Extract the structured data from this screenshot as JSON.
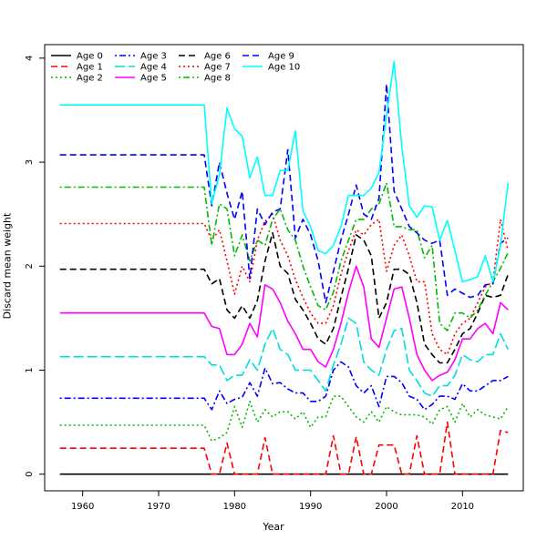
{
  "chart_data": {
    "type": "line",
    "title": "",
    "xlabel": "Year",
    "ylabel": "Discard mean weight",
    "xlim": [
      1955,
      2018
    ],
    "ylim": [
      -0.16,
      4.13
    ],
    "xticks": [
      1960,
      1970,
      1980,
      1990,
      2000,
      2010
    ],
    "yticks": [
      0,
      1,
      2,
      3,
      4
    ],
    "grid": false,
    "legend_position": "top-left",
    "x": [
      1957,
      1958,
      1959,
      1960,
      1961,
      1962,
      1963,
      1964,
      1965,
      1966,
      1967,
      1968,
      1969,
      1970,
      1971,
      1972,
      1973,
      1974,
      1975,
      1976,
      1977,
      1978,
      1979,
      1980,
      1981,
      1982,
      1983,
      1984,
      1985,
      1986,
      1987,
      1988,
      1989,
      1990,
      1991,
      1992,
      1993,
      1994,
      1995,
      1996,
      1997,
      1998,
      1999,
      2000,
      2001,
      2002,
      2003,
      2004,
      2005,
      2006,
      2007,
      2008,
      2009,
      2010,
      2011,
      2012,
      2013,
      2014,
      2015,
      2016
    ],
    "series": [
      {
        "name": "Age 0",
        "color": "#000000",
        "dash": "solid",
        "values": [
          0,
          0,
          0,
          0,
          0,
          0,
          0,
          0,
          0,
          0,
          0,
          0,
          0,
          0,
          0,
          0,
          0,
          0,
          0,
          0,
          0,
          0,
          0,
          0,
          0,
          0,
          0,
          0,
          0,
          0,
          0,
          0,
          0,
          0,
          0,
          0,
          0,
          0,
          0,
          0,
          0,
          0,
          0,
          0,
          0,
          0,
          0,
          0,
          0,
          0,
          0,
          0,
          0,
          0,
          0,
          0,
          0,
          0,
          0,
          0
        ]
      },
      {
        "name": "Age 1",
        "color": "#ff0000",
        "dash": "dashed",
        "values": [
          0.25,
          0.25,
          0.25,
          0.25,
          0.25,
          0.25,
          0.25,
          0.25,
          0.25,
          0.25,
          0.25,
          0.25,
          0.25,
          0.25,
          0.25,
          0.25,
          0.25,
          0.25,
          0.25,
          0.25,
          0,
          0,
          0.3,
          0,
          0,
          0,
          0,
          0.35,
          0,
          0,
          0,
          0,
          0,
          0,
          0,
          0,
          0.37,
          0,
          0,
          0.36,
          0,
          0,
          0.28,
          0.28,
          0.28,
          0,
          0,
          0.37,
          0,
          0,
          0,
          0.5,
          0,
          0,
          0,
          0,
          0,
          0,
          0.42,
          0.4
        ]
      },
      {
        "name": "Age 2",
        "color": "#00bb00",
        "dash": "dotted",
        "values": [
          0.47,
          0.47,
          0.47,
          0.47,
          0.47,
          0.47,
          0.47,
          0.47,
          0.47,
          0.47,
          0.47,
          0.47,
          0.47,
          0.47,
          0.47,
          0.47,
          0.47,
          0.47,
          0.47,
          0.47,
          0.32,
          0.35,
          0.4,
          0.65,
          0.45,
          0.7,
          0.5,
          0.62,
          0.55,
          0.6,
          0.6,
          0.53,
          0.6,
          0.45,
          0.55,
          0.55,
          0.75,
          0.75,
          0.65,
          0.55,
          0.5,
          0.6,
          0.5,
          0.65,
          0.6,
          0.57,
          0.57,
          0.57,
          0.55,
          0.48,
          0.62,
          0.65,
          0.5,
          0.68,
          0.55,
          0.62,
          0.57,
          0.55,
          0.53,
          0.65
        ]
      },
      {
        "name": "Age 3",
        "color": "#0000ff",
        "dash": "dotdash",
        "values": [
          0.73,
          0.73,
          0.73,
          0.73,
          0.73,
          0.73,
          0.73,
          0.73,
          0.73,
          0.73,
          0.73,
          0.73,
          0.73,
          0.73,
          0.73,
          0.73,
          0.73,
          0.73,
          0.73,
          0.73,
          0.62,
          0.8,
          0.68,
          0.72,
          0.74,
          0.88,
          0.75,
          1.02,
          0.87,
          0.88,
          0.82,
          0.78,
          0.78,
          0.7,
          0.7,
          0.75,
          1.0,
          1.08,
          1.03,
          0.85,
          0.78,
          0.85,
          0.65,
          0.94,
          0.94,
          0.88,
          0.75,
          0.72,
          0.62,
          0.67,
          0.75,
          0.75,
          0.72,
          0.87,
          0.8,
          0.8,
          0.85,
          0.9,
          0.9,
          0.94
        ]
      },
      {
        "name": "Age 4",
        "color": "#00dddd",
        "dash": "longdash",
        "values": [
          1.13,
          1.13,
          1.13,
          1.13,
          1.13,
          1.13,
          1.13,
          1.13,
          1.13,
          1.13,
          1.13,
          1.13,
          1.13,
          1.13,
          1.13,
          1.13,
          1.13,
          1.13,
          1.13,
          1.13,
          1.05,
          1.05,
          0.9,
          0.95,
          0.95,
          1.1,
          1.0,
          1.25,
          1.4,
          1.2,
          1.15,
          1.0,
          1.0,
          1.0,
          0.9,
          0.8,
          1.05,
          1.25,
          1.5,
          1.45,
          1.08,
          1.0,
          0.95,
          1.2,
          1.38,
          1.4,
          1.0,
          0.9,
          0.78,
          0.75,
          0.85,
          0.85,
          0.95,
          1.15,
          1.1,
          1.08,
          1.15,
          1.15,
          1.35,
          1.2
        ]
      },
      {
        "name": "Age 5",
        "color": "#ff00ff",
        "dash": "solid",
        "values": [
          1.55,
          1.55,
          1.55,
          1.55,
          1.55,
          1.55,
          1.55,
          1.55,
          1.55,
          1.55,
          1.55,
          1.55,
          1.55,
          1.55,
          1.55,
          1.55,
          1.55,
          1.55,
          1.55,
          1.55,
          1.42,
          1.4,
          1.15,
          1.15,
          1.25,
          1.45,
          1.32,
          1.82,
          1.78,
          1.65,
          1.47,
          1.35,
          1.2,
          1.2,
          1.08,
          1.03,
          1.2,
          1.45,
          1.75,
          2.0,
          1.8,
          1.3,
          1.22,
          1.5,
          1.78,
          1.8,
          1.5,
          1.15,
          1.0,
          0.9,
          0.95,
          0.98,
          1.1,
          1.3,
          1.3,
          1.4,
          1.45,
          1.35,
          1.65,
          1.58
        ]
      },
      {
        "name": "Age 6",
        "color": "#000000",
        "dash": "dashed",
        "values": [
          1.97,
          1.97,
          1.97,
          1.97,
          1.97,
          1.97,
          1.97,
          1.97,
          1.97,
          1.97,
          1.97,
          1.97,
          1.97,
          1.97,
          1.97,
          1.97,
          1.97,
          1.97,
          1.97,
          1.97,
          1.83,
          1.88,
          1.58,
          1.5,
          1.62,
          1.5,
          1.67,
          2.05,
          2.32,
          2.0,
          1.93,
          1.68,
          1.58,
          1.45,
          1.3,
          1.25,
          1.4,
          1.7,
          1.98,
          2.3,
          2.25,
          2.1,
          1.5,
          1.65,
          1.97,
          1.97,
          1.92,
          1.65,
          1.25,
          1.15,
          1.07,
          1.07,
          1.2,
          1.35,
          1.4,
          1.55,
          1.72,
          1.7,
          1.72,
          1.92
        ]
      },
      {
        "name": "Age 7",
        "color": "#ff0000",
        "dash": "dotted",
        "values": [
          2.41,
          2.41,
          2.41,
          2.41,
          2.41,
          2.41,
          2.41,
          2.41,
          2.41,
          2.41,
          2.41,
          2.41,
          2.41,
          2.41,
          2.41,
          2.41,
          2.41,
          2.41,
          2.41,
          2.41,
          2.25,
          2.35,
          2.05,
          1.73,
          2.0,
          1.85,
          2.25,
          2.43,
          2.5,
          2.25,
          2.1,
          1.87,
          1.7,
          1.55,
          1.45,
          1.45,
          1.62,
          1.92,
          2.15,
          2.35,
          2.3,
          2.4,
          2.45,
          1.95,
          2.2,
          2.3,
          2.1,
          1.85,
          1.85,
          1.35,
          1.2,
          1.15,
          1.35,
          1.45,
          1.5,
          1.65,
          1.8,
          1.85,
          2.45,
          2.15
        ]
      },
      {
        "name": "Age 8",
        "color": "#00bb00",
        "dash": "dotdash",
        "values": [
          2.76,
          2.76,
          2.76,
          2.76,
          2.76,
          2.76,
          2.76,
          2.76,
          2.76,
          2.76,
          2.76,
          2.76,
          2.76,
          2.76,
          2.76,
          2.76,
          2.76,
          2.76,
          2.76,
          2.76,
          2.2,
          2.6,
          2.55,
          2.1,
          2.3,
          2.05,
          2.25,
          2.2,
          2.45,
          2.55,
          2.35,
          2.25,
          2.0,
          1.8,
          1.62,
          1.58,
          1.75,
          2.05,
          2.25,
          2.45,
          2.45,
          2.55,
          2.6,
          2.8,
          2.38,
          2.38,
          2.35,
          2.35,
          2.08,
          2.2,
          1.45,
          1.38,
          1.55,
          1.55,
          1.5,
          1.58,
          1.72,
          1.85,
          1.98,
          2.13
        ]
      },
      {
        "name": "Age 9",
        "color": "#0000ff",
        "dash": "dashed",
        "values": [
          3.07,
          3.07,
          3.07,
          3.07,
          3.07,
          3.07,
          3.07,
          3.07,
          3.07,
          3.07,
          3.07,
          3.07,
          3.07,
          3.07,
          3.07,
          3.07,
          3.07,
          3.07,
          3.07,
          3.07,
          2.58,
          3.0,
          2.7,
          2.45,
          2.72,
          1.88,
          2.55,
          2.4,
          2.52,
          2.55,
          3.12,
          2.27,
          2.45,
          2.3,
          2.05,
          1.65,
          1.95,
          2.25,
          2.5,
          2.78,
          2.5,
          2.45,
          2.65,
          3.75,
          2.72,
          2.55,
          2.38,
          2.32,
          2.25,
          2.22,
          2.25,
          1.72,
          1.78,
          1.74,
          1.7,
          1.72,
          1.82,
          1.83,
          2.22,
          2.27
        ]
      },
      {
        "name": "Age 10",
        "color": "#00ffff",
        "dash": "solid",
        "values": [
          3.55,
          3.55,
          3.55,
          3.55,
          3.55,
          3.55,
          3.55,
          3.55,
          3.55,
          3.55,
          3.55,
          3.55,
          3.55,
          3.55,
          3.55,
          3.55,
          3.55,
          3.55,
          3.55,
          3.55,
          2.6,
          2.88,
          3.52,
          3.32,
          3.25,
          2.85,
          3.05,
          2.68,
          2.68,
          2.92,
          2.92,
          3.3,
          2.53,
          2.38,
          2.15,
          2.12,
          2.2,
          2.38,
          2.68,
          2.68,
          2.68,
          2.75,
          2.9,
          3.45,
          3.97,
          3.15,
          2.58,
          2.47,
          2.58,
          2.57,
          2.25,
          2.44,
          2.15,
          1.85,
          1.87,
          1.9,
          2.1,
          1.85,
          2.2,
          2.8
        ]
      }
    ]
  }
}
